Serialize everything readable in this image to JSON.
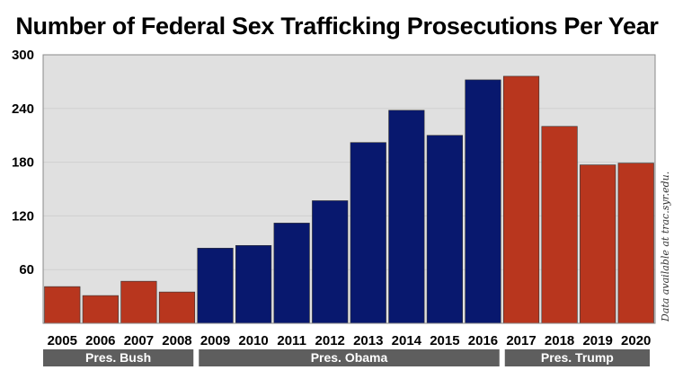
{
  "chart_data": {
    "type": "bar",
    "title": "Number of Federal Sex Trafficking Prosecutions Per Year",
    "categories": [
      "2005",
      "2006",
      "2007",
      "2008",
      "2009",
      "2010",
      "2011",
      "2012",
      "2013",
      "2014",
      "2015",
      "2016",
      "2017",
      "2018",
      "2019",
      "2020"
    ],
    "values": [
      41,
      31,
      47,
      35,
      84,
      87,
      112,
      137,
      202,
      238,
      210,
      272,
      276,
      220,
      177,
      179
    ],
    "ylim": [
      0,
      300
    ],
    "yticks": [
      60,
      120,
      180,
      240,
      300
    ],
    "grid": true,
    "xlabel": "",
    "ylabel": "",
    "groups": [
      {
        "label": "Pres. Bush",
        "from": 0,
        "to": 3,
        "color": "#b8361e"
      },
      {
        "label": "Pres. Obama",
        "from": 4,
        "to": 11,
        "color": "#08186e"
      },
      {
        "label": "Pres. Trump",
        "from": 12,
        "to": 15,
        "color": "#b8361e"
      }
    ],
    "source_note": "Data available at trac.syr.edu."
  },
  "colors": {
    "plot_bg": "#e0e0e0",
    "group_label_bg": "#5e5e5e",
    "grid": "#cfcfcf"
  }
}
